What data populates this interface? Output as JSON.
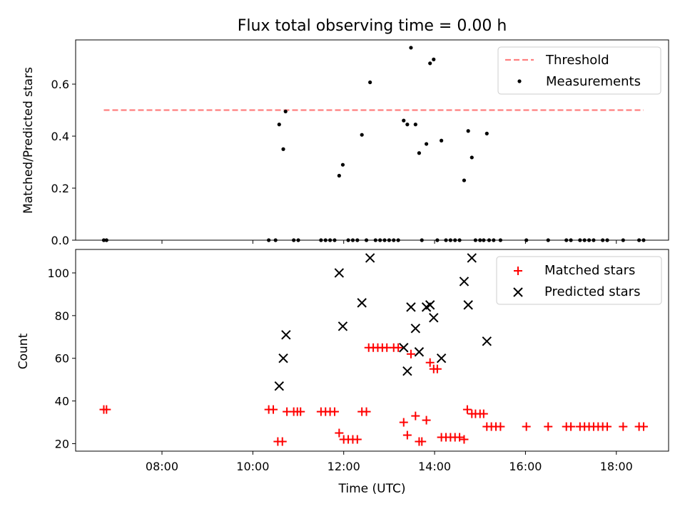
{
  "title": "Flux total observing time = 0.00 h",
  "colors": {
    "threshold": "#ff7f7f",
    "measurement": "#000000",
    "matched": "#ff0000",
    "predicted": "#000000"
  },
  "chart_data": [
    {
      "type": "scatter",
      "ylabel": "Matched/Predicted stars",
      "xlim": [
        6.1,
        19.15
      ],
      "ylim": [
        0,
        0.77
      ],
      "yticks": [
        0.0,
        0.2,
        0.4,
        0.6
      ],
      "ytick_labels": [
        "0.0",
        "0.2",
        "0.4",
        "0.6"
      ],
      "legend": {
        "position": "top-right",
        "entries": [
          "Threshold",
          "Measurements"
        ]
      },
      "threshold": {
        "name": "Threshold",
        "y": 0.5,
        "x": [
          6.72,
          18.6
        ]
      },
      "measurements_name": "Measurements",
      "measurements": [
        [
          6.72,
          0
        ],
        [
          6.78,
          0
        ],
        [
          10.35,
          0
        ],
        [
          10.5,
          0
        ],
        [
          10.58,
          0.445
        ],
        [
          10.67,
          0.35
        ],
        [
          10.72,
          0.495
        ],
        [
          10.9,
          0
        ],
        [
          11.0,
          0
        ],
        [
          11.5,
          0
        ],
        [
          11.6,
          0
        ],
        [
          11.7,
          0
        ],
        [
          11.8,
          0
        ],
        [
          11.9,
          0.248
        ],
        [
          11.98,
          0.29
        ],
        [
          12.1,
          0
        ],
        [
          12.2,
          0
        ],
        [
          12.3,
          0
        ],
        [
          12.4,
          0.405
        ],
        [
          12.5,
          0
        ],
        [
          12.58,
          0.607
        ],
        [
          12.7,
          0
        ],
        [
          12.8,
          0
        ],
        [
          12.9,
          0
        ],
        [
          13.0,
          0
        ],
        [
          13.1,
          0
        ],
        [
          13.2,
          0
        ],
        [
          13.32,
          0.46
        ],
        [
          13.4,
          0.445
        ],
        [
          13.48,
          0.74
        ],
        [
          13.58,
          0.445
        ],
        [
          13.66,
          0.335
        ],
        [
          13.72,
          0
        ],
        [
          13.82,
          0.37
        ],
        [
          13.9,
          0.68
        ],
        [
          13.98,
          0.695
        ],
        [
          14.06,
          0
        ],
        [
          14.15,
          0.383
        ],
        [
          14.25,
          0
        ],
        [
          14.35,
          0
        ],
        [
          14.45,
          0
        ],
        [
          14.55,
          0
        ],
        [
          14.65,
          0.23
        ],
        [
          14.74,
          0.42
        ],
        [
          14.82,
          0.318
        ],
        [
          14.9,
          0
        ],
        [
          15.0,
          0
        ],
        [
          15.08,
          0
        ],
        [
          15.15,
          0.41
        ],
        [
          15.2,
          0
        ],
        [
          15.3,
          0
        ],
        [
          15.45,
          0
        ],
        [
          16.02,
          0
        ],
        [
          16.5,
          0
        ],
        [
          16.9,
          0
        ],
        [
          17.0,
          0
        ],
        [
          17.2,
          0
        ],
        [
          17.3,
          0
        ],
        [
          17.4,
          0
        ],
        [
          17.5,
          0
        ],
        [
          17.7,
          0
        ],
        [
          17.8,
          0
        ],
        [
          18.15,
          0
        ],
        [
          18.5,
          0
        ],
        [
          18.6,
          0
        ]
      ]
    },
    {
      "type": "scatter",
      "xlabel": "Time (UTC)",
      "ylabel": "Count",
      "xlim": [
        6.1,
        19.15
      ],
      "ylim": [
        16.5,
        111
      ],
      "yticks": [
        20,
        40,
        60,
        80,
        100
      ],
      "ytick_labels": [
        "20",
        "40",
        "60",
        "80",
        "100"
      ],
      "xticks": [
        8,
        10,
        12,
        14,
        16,
        18
      ],
      "xtick_labels": [
        "08:00",
        "10:00",
        "12:00",
        "14:00",
        "16:00",
        "18:00"
      ],
      "legend": {
        "position": "top-right",
        "entries": [
          "Matched stars",
          "Predicted stars"
        ]
      },
      "series": [
        {
          "name": "Matched stars",
          "marker": "plus",
          "points": [
            [
              6.72,
              36
            ],
            [
              6.78,
              36
            ],
            [
              10.35,
              36
            ],
            [
              10.45,
              36
            ],
            [
              10.55,
              21
            ],
            [
              10.65,
              21
            ],
            [
              10.75,
              35
            ],
            [
              10.9,
              35
            ],
            [
              10.98,
              35
            ],
            [
              11.05,
              35
            ],
            [
              11.5,
              35
            ],
            [
              11.6,
              35
            ],
            [
              11.7,
              35
            ],
            [
              11.8,
              35
            ],
            [
              11.9,
              25
            ],
            [
              12.0,
              22
            ],
            [
              12.1,
              22
            ],
            [
              12.2,
              22
            ],
            [
              12.3,
              22
            ],
            [
              12.4,
              35
            ],
            [
              12.5,
              35
            ],
            [
              12.55,
              65
            ],
            [
              12.65,
              65
            ],
            [
              12.75,
              65
            ],
            [
              12.85,
              65
            ],
            [
              12.95,
              65
            ],
            [
              13.1,
              65
            ],
            [
              13.2,
              65
            ],
            [
              13.32,
              30
            ],
            [
              13.4,
              24
            ],
            [
              13.48,
              62
            ],
            [
              13.58,
              33
            ],
            [
              13.66,
              21
            ],
            [
              13.72,
              21
            ],
            [
              13.82,
              31
            ],
            [
              13.9,
              58
            ],
            [
              13.98,
              55
            ],
            [
              14.06,
              55
            ],
            [
              14.15,
              23
            ],
            [
              14.25,
              23
            ],
            [
              14.35,
              23
            ],
            [
              14.45,
              23
            ],
            [
              14.55,
              23
            ],
            [
              14.65,
              22
            ],
            [
              14.72,
              36
            ],
            [
              14.82,
              34
            ],
            [
              14.9,
              34
            ],
            [
              15.0,
              34
            ],
            [
              15.08,
              34
            ],
            [
              15.15,
              28
            ],
            [
              15.25,
              28
            ],
            [
              15.35,
              28
            ],
            [
              15.45,
              28
            ],
            [
              16.02,
              28
            ],
            [
              16.5,
              28
            ],
            [
              16.9,
              28
            ],
            [
              17.0,
              28
            ],
            [
              17.2,
              28
            ],
            [
              17.3,
              28
            ],
            [
              17.4,
              28
            ],
            [
              17.5,
              28
            ],
            [
              17.6,
              28
            ],
            [
              17.7,
              28
            ],
            [
              17.8,
              28
            ],
            [
              18.15,
              28
            ],
            [
              18.5,
              28
            ],
            [
              18.6,
              28
            ]
          ]
        },
        {
          "name": "Predicted stars",
          "marker": "x",
          "points": [
            [
              10.58,
              47
            ],
            [
              10.67,
              60
            ],
            [
              10.73,
              71
            ],
            [
              11.9,
              100
            ],
            [
              11.98,
              75
            ],
            [
              12.4,
              86
            ],
            [
              12.58,
              107
            ],
            [
              13.32,
              65
            ],
            [
              13.4,
              54
            ],
            [
              13.48,
              84
            ],
            [
              13.58,
              74
            ],
            [
              13.66,
              63
            ],
            [
              13.82,
              84
            ],
            [
              13.9,
              85
            ],
            [
              13.98,
              79
            ],
            [
              14.15,
              60
            ],
            [
              14.65,
              96
            ],
            [
              14.74,
              85
            ],
            [
              14.82,
              107
            ],
            [
              15.15,
              68
            ]
          ]
        }
      ]
    }
  ]
}
